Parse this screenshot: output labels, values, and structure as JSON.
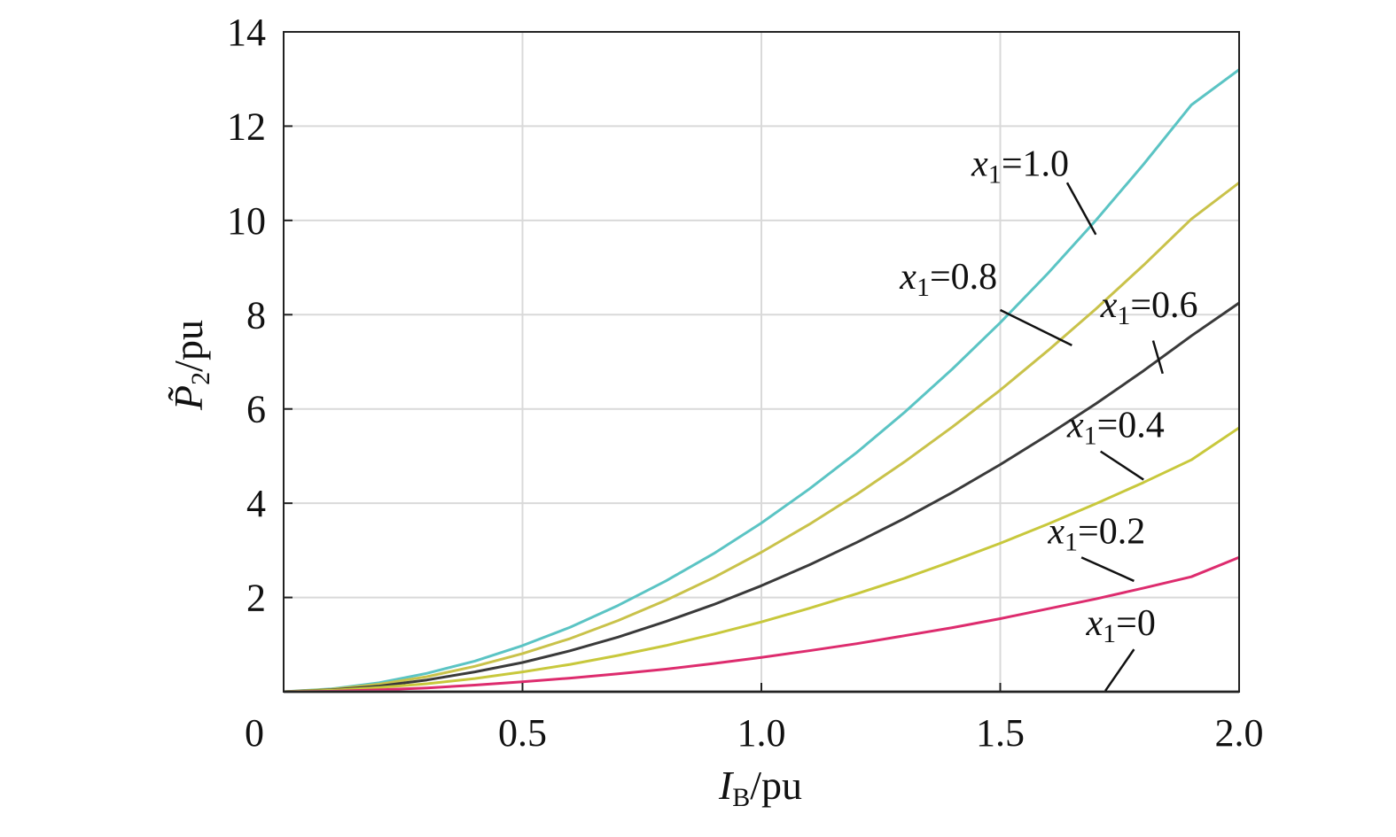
{
  "chart_data": {
    "type": "line",
    "title": "",
    "xlabel": {
      "var": "I",
      "sub": "B",
      "unit": "/pu"
    },
    "ylabel": {
      "var": "P̃",
      "sub": "2",
      "unit": "/pu"
    },
    "xlim": [
      0,
      2.0
    ],
    "ylim": [
      0,
      14
    ],
    "x_ticks": [
      {
        "value": 0.5,
        "label": "0.5"
      },
      {
        "value": 1.0,
        "label": "1.0"
      },
      {
        "value": 1.5,
        "label": "1.5"
      },
      {
        "value": 2.0,
        "label": "2.0"
      }
    ],
    "y_ticks": [
      {
        "value": 2,
        "label": "2"
      },
      {
        "value": 4,
        "label": "4"
      },
      {
        "value": 6,
        "label": "6"
      },
      {
        "value": 8,
        "label": "8"
      },
      {
        "value": 10,
        "label": "10"
      },
      {
        "value": 12,
        "label": "12"
      },
      {
        "value": 14,
        "label": "14"
      }
    ],
    "origin_label": "0",
    "grid": true,
    "x": [
      0,
      0.1,
      0.2,
      0.3,
      0.4,
      0.5,
      0.6,
      0.7,
      0.8,
      0.9,
      1.0,
      1.1,
      1.2,
      1.3,
      1.4,
      1.5,
      1.6,
      1.7,
      1.8,
      1.9,
      2.0
    ],
    "series": [
      {
        "name": "x1=1.0",
        "var": "x",
        "sub": "1",
        "value_text": "=1.0",
        "color": "#5bc4c4",
        "values": [
          0,
          0.06,
          0.19,
          0.39,
          0.65,
          0.98,
          1.37,
          1.83,
          2.35,
          2.93,
          3.58,
          4.3,
          5.08,
          5.93,
          6.85,
          7.83,
          8.88,
          10.0,
          11.19,
          12.45,
          13.2
        ]
      },
      {
        "name": "x1=0.8",
        "var": "x",
        "sub": "1",
        "value_text": "=0.8",
        "color": "#c9c24a",
        "values": [
          0,
          0.05,
          0.16,
          0.32,
          0.54,
          0.81,
          1.13,
          1.51,
          1.94,
          2.42,
          2.96,
          3.55,
          4.19,
          4.88,
          5.62,
          6.4,
          7.24,
          8.12,
          9.05,
          10.03,
          10.8
        ]
      },
      {
        "name": "x1=0.6",
        "var": "x",
        "sub": "1",
        "value_text": "=0.6",
        "color": "#3a3a3a",
        "values": [
          0,
          0.04,
          0.12,
          0.25,
          0.42,
          0.62,
          0.87,
          1.16,
          1.49,
          1.85,
          2.25,
          2.69,
          3.17,
          3.68,
          4.23,
          4.82,
          5.45,
          6.11,
          6.81,
          7.55,
          8.25
        ]
      },
      {
        "name": "x1=0.4",
        "var": "x",
        "sub": "1",
        "value_text": "=0.4",
        "color": "#c8c83c",
        "values": [
          0,
          0.03,
          0.09,
          0.17,
          0.28,
          0.42,
          0.58,
          0.77,
          0.98,
          1.22,
          1.48,
          1.77,
          2.08,
          2.41,
          2.77,
          3.15,
          3.56,
          3.99,
          4.44,
          4.92,
          5.6
        ]
      },
      {
        "name": "x1=0.2",
        "var": "x",
        "sub": "1",
        "value_text": "=0.2",
        "color": "#dd2c6e",
        "values": [
          0,
          0.01,
          0.04,
          0.08,
          0.14,
          0.21,
          0.29,
          0.38,
          0.48,
          0.6,
          0.73,
          0.87,
          1.02,
          1.19,
          1.36,
          1.55,
          1.76,
          1.97,
          2.2,
          2.44,
          2.85
        ]
      },
      {
        "name": "x1=0",
        "var": "x",
        "sub": "1",
        "value_text": "=0",
        "color": "#555555",
        "values": [
          0,
          0,
          0,
          0,
          0,
          0,
          0,
          0,
          0,
          0,
          0,
          0,
          0,
          0,
          0,
          0,
          0,
          0,
          0,
          0,
          0
        ]
      }
    ],
    "gridline_color": "#d9d9d9"
  }
}
